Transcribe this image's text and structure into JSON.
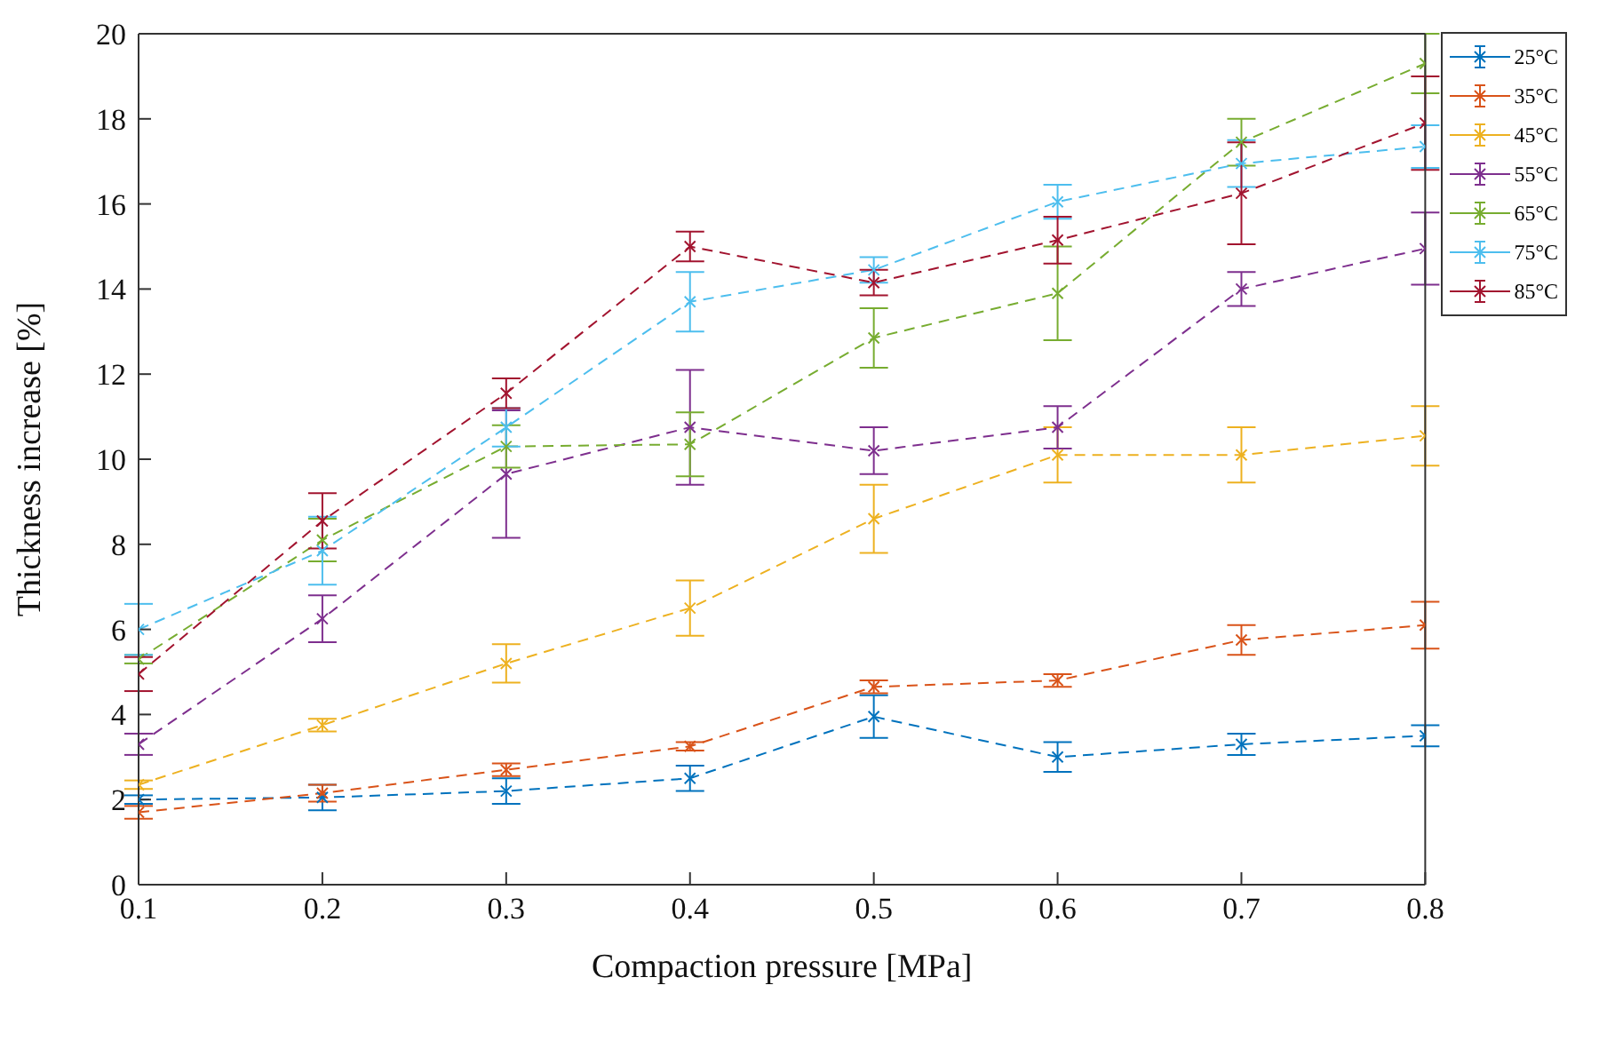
{
  "chart_data": {
    "type": "line",
    "xlabel": "Compaction pressure [MPa]",
    "ylabel": "Thickness increase [%]",
    "x": [
      0.1,
      0.2,
      0.3,
      0.4,
      0.5,
      0.6,
      0.7,
      0.8
    ],
    "xlim": [
      0.1,
      0.8
    ],
    "xticks": [
      0.1,
      0.2,
      0.3,
      0.4,
      0.5,
      0.6,
      0.7,
      0.8
    ],
    "ylim": [
      0,
      20
    ],
    "yticks": [
      0,
      2,
      4,
      6,
      8,
      10,
      12,
      14,
      16,
      18,
      20
    ],
    "grid": false,
    "legend": "top right",
    "marker": "cross",
    "line_style": "dashed",
    "series": [
      {
        "name": "25°C",
        "color": "#0072bd",
        "values": [
          2.0,
          2.05,
          2.2,
          2.5,
          3.95,
          3.0,
          3.3,
          3.5
        ],
        "errors": [
          0.1,
          0.3,
          0.3,
          0.3,
          0.5,
          0.35,
          0.25,
          0.25
        ]
      },
      {
        "name": "35°C",
        "color": "#d95319",
        "values": [
          1.7,
          2.15,
          2.7,
          3.25,
          4.65,
          4.8,
          5.75,
          6.1
        ],
        "errors": [
          0.15,
          0.2,
          0.15,
          0.1,
          0.15,
          0.15,
          0.35,
          0.55
        ]
      },
      {
        "name": "45°C",
        "color": "#edb120",
        "values": [
          2.35,
          3.75,
          5.2,
          6.5,
          8.6,
          10.1,
          10.1,
          10.55
        ],
        "errors": [
          0.1,
          0.15,
          0.45,
          0.65,
          0.8,
          0.65,
          0.65,
          0.7
        ]
      },
      {
        "name": "55°C",
        "color": "#7e2f8e",
        "values": [
          3.3,
          6.25,
          9.65,
          10.75,
          10.2,
          10.75,
          14.0,
          14.95
        ],
        "errors": [
          0.25,
          0.55,
          1.5,
          1.35,
          0.55,
          0.5,
          0.4,
          0.85
        ]
      },
      {
        "name": "65°C",
        "color": "#77ac30",
        "values": [
          5.3,
          8.1,
          10.3,
          10.35,
          12.85,
          13.9,
          17.45,
          19.3
        ],
        "errors": [
          0.1,
          0.5,
          0.5,
          0.75,
          0.7,
          1.1,
          0.55,
          0.7
        ]
      },
      {
        "name": "75°C",
        "color": "#4dbeee",
        "values": [
          6.0,
          7.85,
          10.75,
          13.7,
          14.45,
          16.05,
          16.95,
          17.35
        ],
        "errors": [
          0.6,
          0.8,
          0.45,
          0.7,
          0.3,
          0.4,
          0.55,
          0.5
        ]
      },
      {
        "name": "85°C",
        "color": "#a2142f",
        "values": [
          4.95,
          8.55,
          11.55,
          15.0,
          14.15,
          15.15,
          16.25,
          17.9
        ],
        "errors": [
          0.4,
          0.65,
          0.35,
          0.35,
          0.3,
          0.55,
          1.2,
          1.1
        ]
      }
    ]
  }
}
